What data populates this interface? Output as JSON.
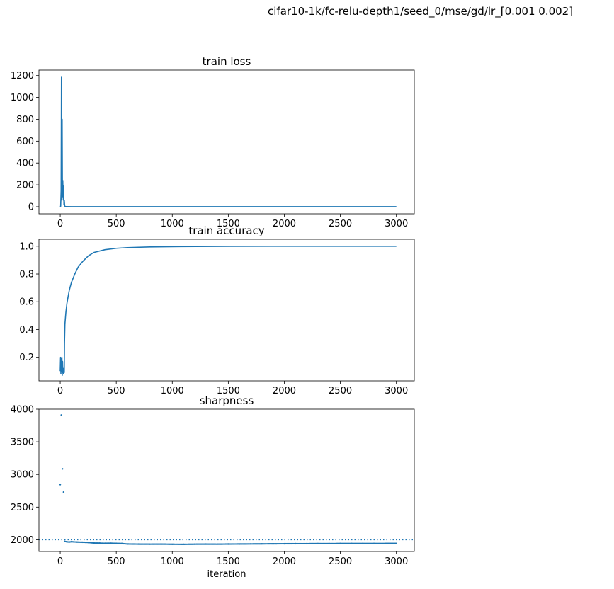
{
  "figure": {
    "suptitle": "cifar10-1k/fc-relu-depth1/seed_0/mse/gd/lr_[0.001 0.002]",
    "line_color": "#1f77b4"
  },
  "chart_data": [
    {
      "type": "line",
      "title": "train loss",
      "xlabel": "",
      "ylabel": "",
      "xlim": [
        -190,
        3160
      ],
      "ylim": [
        -65,
        1250
      ],
      "xticks": [
        0,
        500,
        1000,
        1500,
        2000,
        2500,
        3000
      ],
      "yticks": [
        0,
        200,
        400,
        600,
        800,
        1000,
        1200
      ],
      "grid": false,
      "series": [
        {
          "values": [
            [
              0,
              0
            ],
            [
              4,
              5
            ],
            [
              8,
              150
            ],
            [
              11,
              1185
            ],
            [
              13,
              700
            ],
            [
              15,
              60
            ],
            [
              17,
              800
            ],
            [
              19,
              250
            ],
            [
              21,
              120
            ],
            [
              23,
              240
            ],
            [
              25,
              90
            ],
            [
              27,
              190
            ],
            [
              29,
              60
            ],
            [
              31,
              180
            ],
            [
              33,
              20
            ],
            [
              36,
              60
            ],
            [
              40,
              5
            ],
            [
              50,
              1
            ],
            [
              100,
              0
            ],
            [
              3000,
              0
            ]
          ]
        }
      ]
    },
    {
      "type": "line",
      "title": "train accuracy",
      "xlabel": "",
      "ylabel": "",
      "xlim": [
        -190,
        3160
      ],
      "ylim": [
        0.03,
        1.05
      ],
      "xticks": [
        0,
        500,
        1000,
        1500,
        2000,
        2500,
        3000
      ],
      "yticks": [
        0.2,
        0.4,
        0.6,
        0.8,
        1.0
      ],
      "grid": false,
      "series": [
        {
          "values": [
            [
              0,
              0.1
            ],
            [
              3,
              0.2
            ],
            [
              6,
              0.08
            ],
            [
              9,
              0.19
            ],
            [
              12,
              0.1
            ],
            [
              15,
              0.2
            ],
            [
              18,
              0.07
            ],
            [
              21,
              0.17
            ],
            [
              24,
              0.09
            ],
            [
              27,
              0.12
            ],
            [
              30,
              0.08
            ],
            [
              33,
              0.1
            ],
            [
              36,
              0.09
            ],
            [
              38,
              0.3
            ],
            [
              42,
              0.44
            ],
            [
              50,
              0.52
            ],
            [
              60,
              0.59
            ],
            [
              80,
              0.68
            ],
            [
              100,
              0.74
            ],
            [
              130,
              0.8
            ],
            [
              160,
              0.85
            ],
            [
              200,
              0.89
            ],
            [
              250,
              0.93
            ],
            [
              300,
              0.955
            ],
            [
              400,
              0.975
            ],
            [
              500,
              0.985
            ],
            [
              600,
              0.99
            ],
            [
              800,
              0.995
            ],
            [
              1000,
              0.997
            ],
            [
              1500,
              0.999
            ],
            [
              2000,
              1.0
            ],
            [
              3000,
              1.0
            ]
          ]
        }
      ]
    },
    {
      "type": "scatter",
      "title": "sharpness",
      "xlabel": "iteration",
      "ylabel": "",
      "xlim": [
        -190,
        3160
      ],
      "ylim": [
        1820,
        4000
      ],
      "xticks": [
        0,
        500,
        1000,
        1500,
        2000,
        2500,
        3000
      ],
      "yticks": [
        2000,
        2500,
        3000,
        3500,
        4000
      ],
      "grid": false,
      "reference_line": {
        "y": 2000,
        "style": "dotted"
      },
      "series": [
        {
          "points": [
            [
              0,
              2845
            ],
            [
              10,
              3910
            ],
            [
              20,
              3085
            ],
            [
              30,
              2730
            ],
            [
              40,
              1975
            ],
            [
              60,
              1968
            ],
            [
              80,
              1965
            ],
            [
              100,
              1970
            ],
            [
              150,
              1964
            ],
            [
              200,
              1962
            ],
            [
              250,
              1958
            ],
            [
              300,
              1950
            ],
            [
              350,
              1948
            ],
            [
              400,
              1945
            ],
            [
              450,
              1947
            ],
            [
              500,
              1944
            ],
            [
              550,
              1942
            ],
            [
              600,
              1935
            ],
            [
              700,
              1933
            ],
            [
              800,
              1932
            ],
            [
              900,
              1933
            ],
            [
              1000,
              1931
            ],
            [
              1100,
              1930
            ],
            [
              1200,
              1932
            ],
            [
              1300,
              1933
            ],
            [
              1400,
              1932
            ],
            [
              1500,
              1934
            ],
            [
              1600,
              1935
            ],
            [
              1700,
              1936
            ],
            [
              1800,
              1937
            ],
            [
              1900,
              1938
            ],
            [
              2000,
              1939
            ],
            [
              2100,
              1940
            ],
            [
              2200,
              1940
            ],
            [
              2300,
              1941
            ],
            [
              2400,
              1941
            ],
            [
              2500,
              1942
            ],
            [
              2600,
              1942
            ],
            [
              2700,
              1942
            ],
            [
              2800,
              1942
            ],
            [
              2900,
              1943
            ],
            [
              3000,
              1943
            ]
          ]
        }
      ]
    }
  ]
}
